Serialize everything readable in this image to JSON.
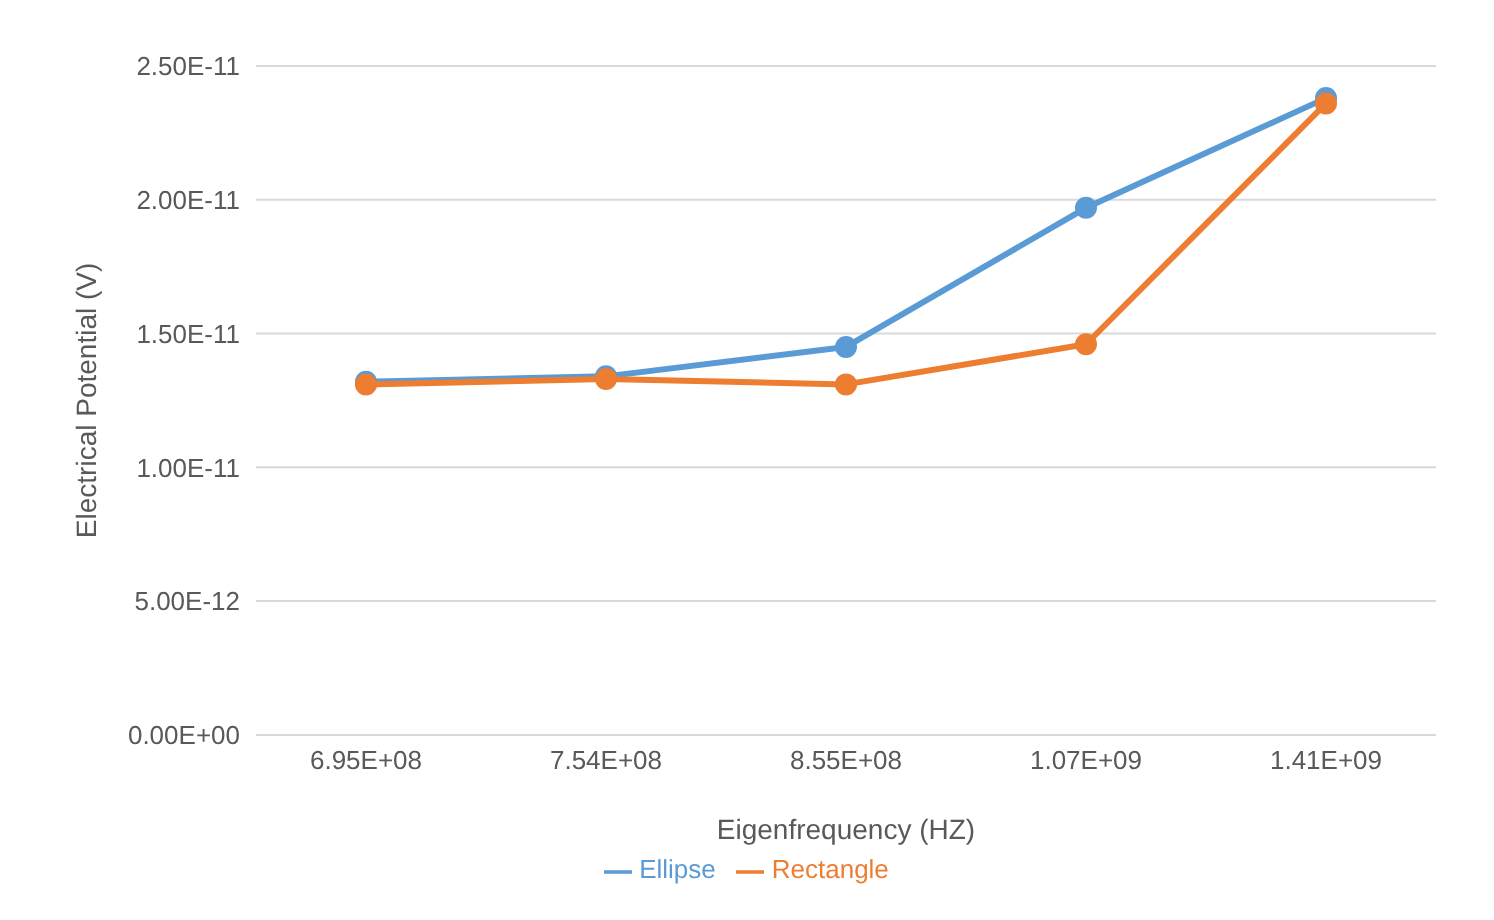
{
  "chart_data": {
    "type": "line",
    "xlabel": "Eigenfrequency (HZ)",
    "ylabel": "Electrical Potential (V)",
    "categories": [
      "6.95E+08",
      "7.54E+08",
      "8.55E+08",
      "1.07E+09",
      "1.41E+09"
    ],
    "series": [
      {
        "name": "Ellipse",
        "color": "#5b9bd5",
        "values": [
          1.32e-11,
          1.34e-11,
          1.45e-11,
          1.97e-11,
          2.38e-11
        ]
      },
      {
        "name": "Rectangle",
        "color": "#ed7d31",
        "values": [
          1.31e-11,
          1.33e-11,
          1.31e-11,
          1.46e-11,
          2.36e-11
        ]
      }
    ],
    "ylim": [
      0,
      2.5e-11
    ],
    "yticks": [
      {
        "value": 0,
        "label": "0.00E+00"
      },
      {
        "value": 5e-12,
        "label": "5.00E-12"
      },
      {
        "value": 1e-11,
        "label": "1.00E-11"
      },
      {
        "value": 1.5e-11,
        "label": "1.50E-11"
      },
      {
        "value": 2e-11,
        "label": "2.00E-11"
      },
      {
        "value": 2.5e-11,
        "label": "2.50E-11"
      }
    ],
    "grid": "y",
    "legend": "bottom",
    "marker": "circle",
    "line_style": "solid"
  }
}
